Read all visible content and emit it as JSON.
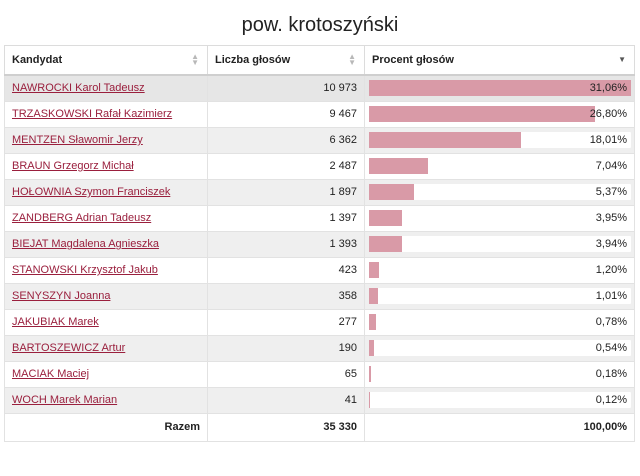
{
  "title": "pow. krotoszyński",
  "headers": {
    "candidate": "Kandydat",
    "votes": "Liczba głosów",
    "percent": "Procent głosów"
  },
  "rows": [
    {
      "name": "NAWROCKI Karol Tadeusz",
      "votes": "10 973",
      "percent": "31,06%",
      "value": 31.06
    },
    {
      "name": "TRZASKOWSKI Rafał Kazimierz",
      "votes": "9 467",
      "percent": "26,80%",
      "value": 26.8
    },
    {
      "name": "MENTZEN Sławomir Jerzy",
      "votes": "6 362",
      "percent": "18,01%",
      "value": 18.01
    },
    {
      "name": "BRAUN Grzegorz Michał",
      "votes": "2 487",
      "percent": "7,04%",
      "value": 7.04
    },
    {
      "name": "HOŁOWNIA Szymon Franciszek",
      "votes": "1 897",
      "percent": "5,37%",
      "value": 5.37
    },
    {
      "name": "ZANDBERG Adrian Tadeusz",
      "votes": "1 397",
      "percent": "3,95%",
      "value": 3.95
    },
    {
      "name": "BIEJAT Magdalena Agnieszka",
      "votes": "1 393",
      "percent": "3,94%",
      "value": 3.94
    },
    {
      "name": "STANOWSKI Krzysztof Jakub",
      "votes": "423",
      "percent": "1,20%",
      "value": 1.2
    },
    {
      "name": "SENYSZYN Joanna",
      "votes": "358",
      "percent": "1,01%",
      "value": 1.01
    },
    {
      "name": "JAKUBIAK Marek",
      "votes": "277",
      "percent": "0,78%",
      "value": 0.78
    },
    {
      "name": "BARTOSZEWICZ Artur",
      "votes": "190",
      "percent": "0,54%",
      "value": 0.54
    },
    {
      "name": "MACIAK Maciej",
      "votes": "65",
      "percent": "0,18%",
      "value": 0.18
    },
    {
      "name": "WOCH Marek Marian",
      "votes": "41",
      "percent": "0,12%",
      "value": 0.12
    }
  ],
  "footer": {
    "label": "Razem",
    "votes": "35 330",
    "percent": "100,00%"
  },
  "colors": {
    "bar": "#d99aa7",
    "link": "#9a1f3d"
  },
  "icons": {
    "sort_neutral": "sort-both-icon",
    "sort_desc": "sort-desc-icon"
  }
}
